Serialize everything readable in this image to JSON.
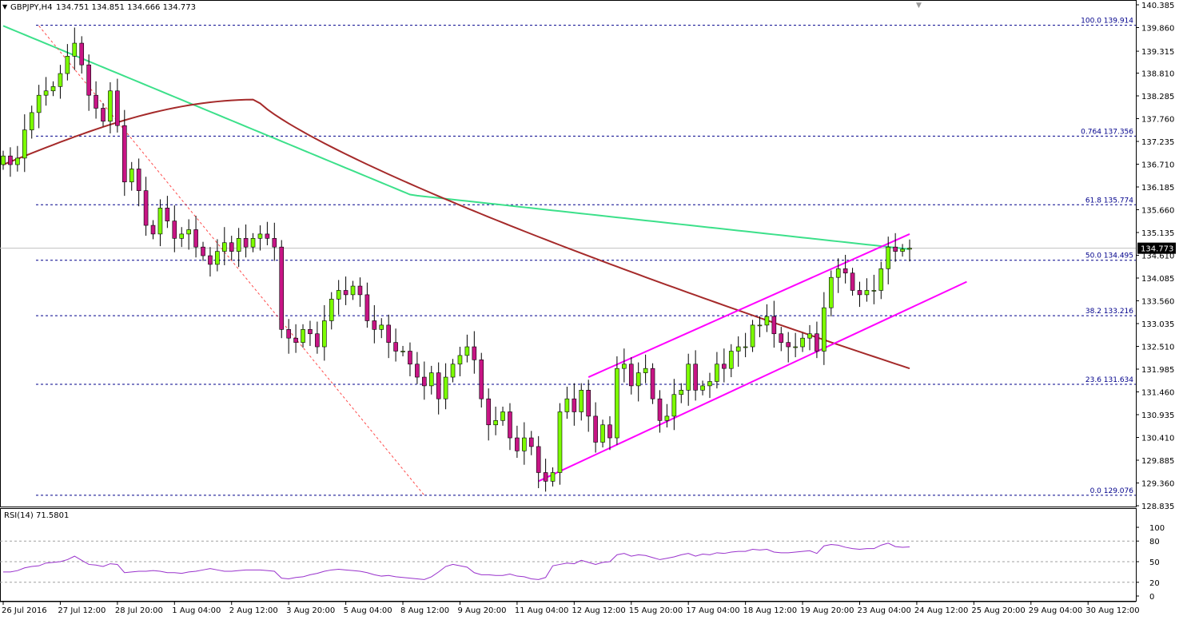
{
  "header": {
    "symbol_text": "GBPJPY,H4",
    "ohlc_text": "134.751 134.851 134.666 134.773"
  },
  "current_price_label": "134.773",
  "price_axis_ticks": [
    "140.385",
    "139.860",
    "139.315",
    "138.810",
    "138.285",
    "137.760",
    "137.235",
    "136.710",
    "136.185",
    "135.660",
    "135.135",
    "134.610",
    "134.085",
    "133.560",
    "133.035",
    "132.510",
    "131.985",
    "131.460",
    "130.935",
    "130.410",
    "129.885",
    "129.360",
    "128.835"
  ],
  "fib_levels": [
    {
      "label": "100.0 139.914",
      "price": 139.914
    },
    {
      "label": "0.764 137.356",
      "price": 137.356
    },
    {
      "label": "61.8 135.774",
      "price": 135.774
    },
    {
      "label": "50.0 134.495",
      "price": 134.495
    },
    {
      "label": "38.2 133.216",
      "price": 133.216
    },
    {
      "label": "23.6 131.634",
      "price": 131.634
    },
    {
      "label": "0.0 129.076",
      "price": 129.076
    }
  ],
  "time_axis_labels": [
    "26 Jul 2016",
    "27 Jul 12:00",
    "28 Jul 20:00",
    "1 Aug 04:00",
    "2 Aug 12:00",
    "3 Aug 20:00",
    "5 Aug 04:00",
    "8 Aug 12:00",
    "9 Aug 20:00",
    "11 Aug 04:00",
    "12 Aug 12:00",
    "15 Aug 20:00",
    "17 Aug 04:00",
    "18 Aug 12:00",
    "19 Aug 20:00",
    "23 Aug 04:00",
    "24 Aug 12:00",
    "25 Aug 20:00",
    "29 Aug 04:00",
    "30 Aug 12:00"
  ],
  "rsi": {
    "label": "RSI(14) 71.5801",
    "axis_ticks": [
      "100",
      "80",
      "50",
      "20",
      "0"
    ],
    "levels": [
      80,
      50,
      20
    ]
  },
  "colors": {
    "bull_candle": "#7CFC00",
    "bear_candle": "#C71585",
    "green_ma": "#3CE08A",
    "red_ma": "#A52A2A",
    "channel": "#FF00FF",
    "fib_line": "#00008B",
    "trend_dashed": "#FF4B4B",
    "rsi_line": "#9932CC"
  },
  "chart_data": [
    {
      "type": "candlestick",
      "symbol": "GBPJPY",
      "timeframe": "H4",
      "title": "GBPJPY,H4",
      "ylim": [
        128.835,
        140.385
      ],
      "x_labels": [
        "26 Jul 2016",
        "27 Jul 12:00",
        "28 Jul 20:00",
        "1 Aug 04:00",
        "2 Aug 12:00",
        "3 Aug 20:00",
        "5 Aug 04:00",
        "8 Aug 12:00",
        "9 Aug 20:00",
        "11 Aug 04:00",
        "12 Aug 12:00",
        "15 Aug 20:00",
        "17 Aug 04:00",
        "18 Aug 12:00",
        "19 Aug 20:00",
        "23 Aug 04:00",
        "24 Aug 12:00",
        "25 Aug 20:00",
        "29 Aug 04:00",
        "30 Aug 12:00"
      ],
      "candles_per_label": 8,
      "closes": [
        136.9,
        136.7,
        136.85,
        137.5,
        137.9,
        138.3,
        138.4,
        138.5,
        138.8,
        139.2,
        139.5,
        139.0,
        138.3,
        138.0,
        137.7,
        138.4,
        137.6,
        136.3,
        136.6,
        136.1,
        135.3,
        135.1,
        135.7,
        135.4,
        135.0,
        135.1,
        135.2,
        134.8,
        134.6,
        134.4,
        134.7,
        134.9,
        134.7,
        135.0,
        134.8,
        135.0,
        135.1,
        135.0,
        134.8,
        132.9,
        132.7,
        132.6,
        132.9,
        132.8,
        132.5,
        133.1,
        133.6,
        133.8,
        133.7,
        133.9,
        133.7,
        133.1,
        132.9,
        133.0,
        132.6,
        132.4,
        132.4,
        132.1,
        131.8,
        131.6,
        131.9,
        131.3,
        131.8,
        132.1,
        132.3,
        132.5,
        132.2,
        131.3,
        130.7,
        130.8,
        131.0,
        130.4,
        130.1,
        130.4,
        130.2,
        129.6,
        129.4,
        129.6,
        131.0,
        131.3,
        131.0,
        131.5,
        130.9,
        130.3,
        130.7,
        130.4,
        132.0,
        132.1,
        131.6,
        131.9,
        132.0,
        131.3,
        130.8,
        130.9,
        131.4,
        131.5,
        132.1,
        131.5,
        131.6,
        131.7,
        132.1,
        132.0,
        132.4,
        132.5,
        132.5,
        133.0,
        133.0,
        133.2,
        132.8,
        132.6,
        132.5,
        132.5,
        132.7,
        132.8,
        132.4,
        133.4,
        134.1,
        134.3,
        134.2,
        133.8,
        133.7,
        133.8,
        133.8,
        134.3,
        134.8,
        134.7,
        134.75,
        134.773
      ],
      "series_lines": [
        {
          "kind": "green_moving_average",
          "start": 139.9,
          "mid": 136.0,
          "end": 134.75
        },
        {
          "kind": "red_moving_average",
          "start": 136.7,
          "peak": 138.2,
          "end": 132.0
        }
      ]
    },
    {
      "type": "line",
      "title": "RSI(14) 71.5801",
      "ylim": [
        0,
        100
      ],
      "levels": [
        80,
        50,
        20
      ],
      "values": [
        35,
        35,
        37,
        41,
        43,
        44,
        48,
        49,
        50,
        53,
        58,
        52,
        46,
        45,
        43,
        47,
        46,
        34,
        35,
        36,
        36,
        37,
        36,
        34,
        34,
        33,
        35,
        36,
        38,
        40,
        38,
        36,
        36,
        37,
        38,
        38,
        38,
        37,
        36,
        26,
        25,
        27,
        28,
        31,
        33,
        36,
        38,
        39,
        38,
        37,
        36,
        34,
        31,
        29,
        30,
        28,
        27,
        26,
        25,
        24,
        28,
        35,
        43,
        46,
        44,
        42,
        34,
        31,
        31,
        30,
        30,
        32,
        29,
        28,
        25,
        24,
        27,
        44,
        46,
        48,
        47,
        52,
        49,
        46,
        49,
        50,
        60,
        62,
        58,
        60,
        59,
        56,
        53,
        55,
        57,
        60,
        62,
        58,
        61,
        60,
        63,
        62,
        64,
        65,
        65,
        68,
        67,
        68,
        64,
        63,
        63,
        64,
        65,
        66,
        62,
        73,
        75,
        74,
        71,
        69,
        68,
        69,
        69,
        74,
        77,
        72,
        71,
        71.58
      ]
    }
  ]
}
